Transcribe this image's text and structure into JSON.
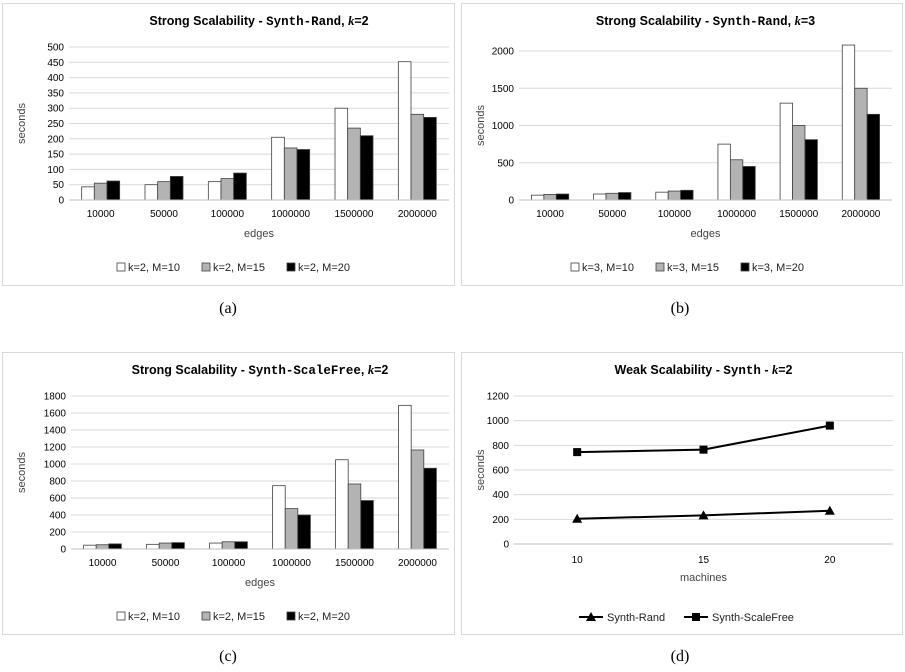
{
  "chart_data": [
    {
      "id": "a",
      "type": "bar",
      "title": {
        "pre": "Strong Scalability - ",
        "dataset": "Synth-Rand",
        "sep": ", ",
        "kvar": "k",
        "kval": "=2"
      },
      "categories": [
        "10000",
        "50000",
        "100000",
        "1000000",
        "1500000",
        "2000000"
      ],
      "series": [
        {
          "name": "k=2, M=10",
          "values": [
            43,
            50,
            60,
            205,
            300,
            452
          ]
        },
        {
          "name": "k=2, M=15",
          "values": [
            55,
            60,
            70,
            170,
            235,
            280
          ]
        },
        {
          "name": "k=2, M=20",
          "values": [
            62,
            77,
            88,
            165,
            210,
            270
          ]
        }
      ],
      "xlabel": "edges",
      "ylabel": "seconds",
      "ylim": [
        0,
        500
      ],
      "yticks": [
        "0",
        "50",
        "100",
        "150",
        "200",
        "250",
        "300",
        "350",
        "400",
        "450",
        "500"
      ],
      "grid": true,
      "legend": "bottom",
      "caption": "(a)"
    },
    {
      "id": "b",
      "type": "bar",
      "title": {
        "pre": "Strong Scalability - ",
        "dataset": "Synth-Rand",
        "sep": ", ",
        "kvar": "k",
        "kval": "=3"
      },
      "categories": [
        "10000",
        "50000",
        "100000",
        "1000000",
        "1500000",
        "2000000"
      ],
      "series": [
        {
          "name": "k=3, M=10",
          "values": [
            65,
            80,
            105,
            750,
            1300,
            2080
          ]
        },
        {
          "name": "k=3, M=15",
          "values": [
            75,
            90,
            120,
            540,
            1000,
            1500
          ]
        },
        {
          "name": "k=3, M=20",
          "values": [
            80,
            100,
            130,
            450,
            810,
            1150
          ]
        }
      ],
      "xlabel": "edges",
      "ylabel": "seconds",
      "ylim": [
        0,
        2000
      ],
      "yticks": [
        "0",
        "500",
        "1000",
        "1500",
        "2000"
      ],
      "grid": true,
      "legend": "bottom",
      "caption": "(b)"
    },
    {
      "id": "c",
      "type": "bar",
      "title": {
        "pre": "Strong Scalability - ",
        "dataset": "Synth-ScaleFree",
        "sep": ", ",
        "kvar": "k",
        "kval": "=2"
      },
      "categories": [
        "10000",
        "50000",
        "100000",
        "1000000",
        "1500000",
        "2000000"
      ],
      "series": [
        {
          "name": "k=2, M=10",
          "values": [
            45,
            55,
            70,
            745,
            1050,
            1690
          ]
        },
        {
          "name": "k=2, M=15",
          "values": [
            50,
            70,
            85,
            475,
            765,
            1165
          ]
        },
        {
          "name": "k=2, M=20",
          "values": [
            60,
            75,
            85,
            400,
            570,
            950
          ]
        }
      ],
      "xlabel": "edges",
      "ylabel": "seconds",
      "ylim": [
        0,
        1800
      ],
      "yticks": [
        "0",
        "200",
        "400",
        "600",
        "800",
        "1000",
        "1200",
        "1400",
        "1600",
        "1800"
      ],
      "grid": true,
      "legend": "bottom",
      "caption": "(c)"
    },
    {
      "id": "d",
      "type": "line",
      "title": {
        "pre": "Weak Scalability - ",
        "dataset": "Synth",
        "sep": "  -  ",
        "kvar": "k",
        "kval": "=2"
      },
      "categories": [
        "10",
        "15",
        "20"
      ],
      "series": [
        {
          "name": "Synth-Rand",
          "marker": "triangle",
          "values": [
            205,
            232,
            270
          ]
        },
        {
          "name": "Synth-ScaleFree",
          "marker": "square",
          "values": [
            745,
            765,
            960
          ]
        }
      ],
      "xlabel": "machines",
      "ylabel": "seconds",
      "ylim": [
        0,
        1200
      ],
      "yticks": [
        "0",
        "200",
        "400",
        "600",
        "800",
        "1000",
        "1200"
      ],
      "grid": true,
      "legend": "bottom",
      "caption": "(d)"
    }
  ],
  "colors": {
    "series_fill": [
      "#ffffff",
      "#b3b3b3",
      "#000000"
    ],
    "bar_stroke": "#404040",
    "grid": "#d9d9d9",
    "line": "#000000"
  }
}
